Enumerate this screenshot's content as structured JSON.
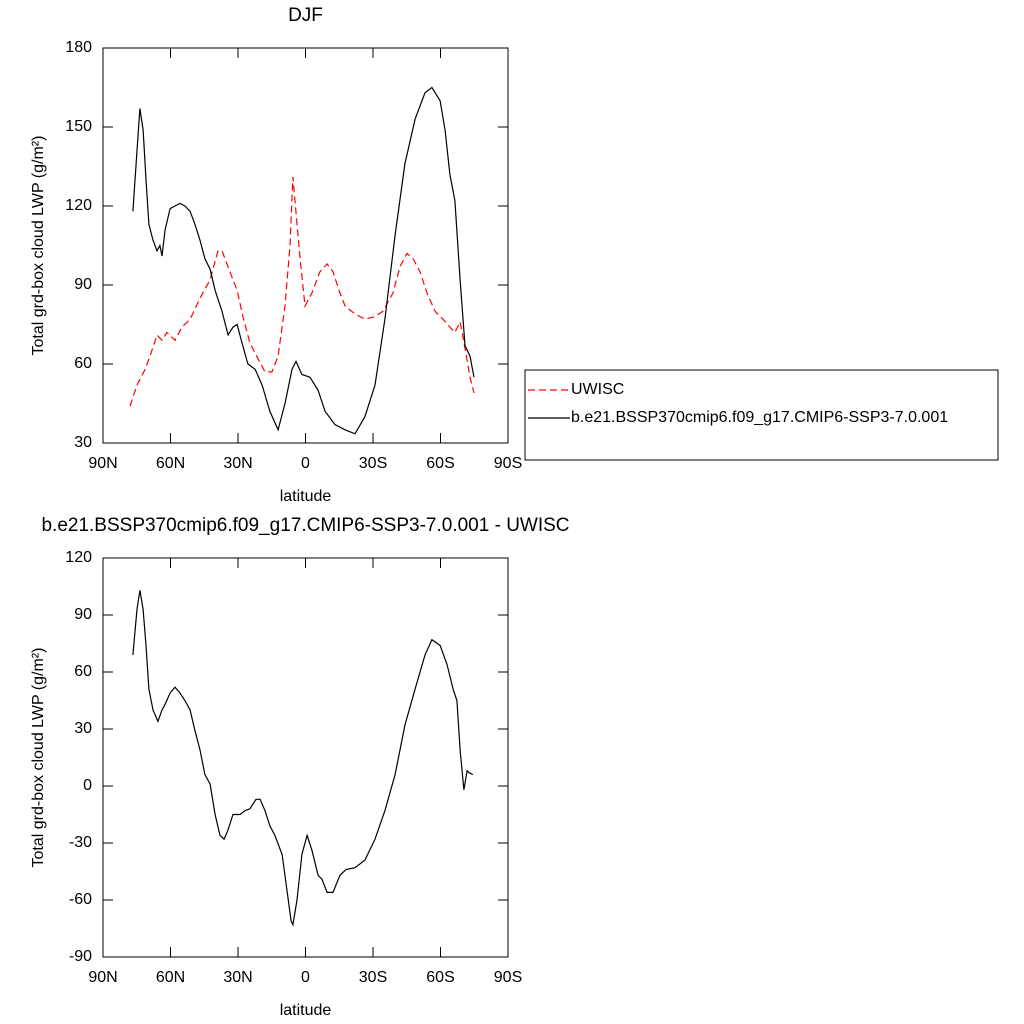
{
  "chart_data": [
    {
      "type": "line",
      "title": "DJF",
      "xlabel": "latitude",
      "ylabel": "Total grd-box cloud LWP (g/m²)",
      "xlim": [
        90,
        -90
      ],
      "xticks": [
        {
          "value": 90,
          "label": "90N"
        },
        {
          "value": 60,
          "label": "60N"
        },
        {
          "value": 30,
          "label": "30N"
        },
        0,
        {
          "value": -30,
          "label": "30S"
        },
        {
          "value": -60,
          "label": "60S"
        },
        {
          "value": -90,
          "label": "90S"
        }
      ],
      "ylim": [
        30,
        180
      ],
      "yticks": [
        30,
        60,
        90,
        120,
        150,
        180
      ],
      "legend": "right",
      "series": [
        {
          "name": "UWISC",
          "color": "#ff0000",
          "line_style": "dashed",
          "x": [
            78.0,
            74.9,
            71.3,
            69.1,
            66.0,
            63.8,
            61.6,
            58.0,
            54.9,
            51.3,
            46.9,
            42.4,
            38.9,
            37.1,
            33.6,
            30.4,
            27.8,
            24.7,
            21.1,
            18.0,
            14.9,
            12.2,
            9.1,
            6.9,
            5.6,
            2.4,
            0.2,
            -2.9,
            -6.4,
            -9.6,
            -12.2,
            -15.3,
            -17.6,
            -22.0,
            -26.4,
            -30.9,
            -34.4,
            -38.9,
            -42.0,
            -45.1,
            -47.8,
            -50.9,
            -54.0,
            -57.6,
            -61.1,
            -64.2,
            -66.4,
            -68.7,
            -70.9,
            -73.1,
            -74.9
          ],
          "values": [
            44,
            52,
            58,
            63,
            71,
            69,
            72,
            69,
            74,
            77,
            85,
            92,
            103,
            103,
            95,
            88,
            78,
            68,
            62,
            57,
            57,
            63,
            82,
            105,
            131,
            100,
            82,
            87,
            95,
            98,
            95,
            87,
            82,
            79,
            77,
            78,
            80,
            87,
            97,
            102,
            100,
            95,
            87,
            80,
            77,
            74,
            72,
            76,
            66,
            55,
            49
          ]
        },
        {
          "name": "b.e21.BSSP370cmip6.f09_g17.CMIP6-SSP3-7.0.001",
          "color": "#000000",
          "line_style": "solid",
          "x": [
            76.7,
            74.9,
            73.6,
            72.2,
            70.9,
            69.6,
            67.8,
            66.0,
            64.7,
            63.8,
            62.4,
            60.2,
            58.0,
            55.8,
            53.6,
            51.3,
            49.1,
            46.9,
            44.7,
            42.4,
            40.2,
            37.1,
            34.4,
            32.2,
            30.4,
            28.2,
            25.6,
            22.4,
            19.3,
            15.8,
            12.2,
            9.1,
            6.0,
            4.2,
            1.6,
            -2.0,
            -5.6,
            -8.7,
            -13.1,
            -17.6,
            -22.0,
            -26.4,
            -30.9,
            -35.3,
            -39.8,
            -44.2,
            -48.7,
            -53.1,
            -56.2,
            -59.8,
            -62.0,
            -64.2,
            -66.4,
            -68.7,
            -70.9,
            -73.1,
            -74.9
          ],
          "values": [
            118,
            141,
            157,
            149,
            130,
            113,
            107,
            103,
            105,
            101,
            111,
            119,
            120,
            121,
            120,
            118,
            113,
            107,
            100,
            96,
            88,
            80,
            71,
            74,
            75,
            68,
            60,
            58,
            52,
            42,
            35,
            45,
            58,
            61,
            56,
            55,
            50,
            42,
            37,
            35,
            33.5,
            40,
            52,
            77,
            109,
            136,
            153,
            163,
            165,
            160,
            149,
            132,
            122,
            92,
            67,
            63,
            55
          ]
        }
      ]
    },
    {
      "type": "line",
      "title": "b.e21.BSSP370cmip6.f09_g17.CMIP6-SSP3-7.0.001 - UWISC",
      "xlabel": "latitude",
      "ylabel": "Total grd-box cloud LWP (g/m²)",
      "xlim": [
        90,
        -90
      ],
      "xticks": [
        {
          "value": 90,
          "label": "90N"
        },
        {
          "value": 60,
          "label": "60N"
        },
        {
          "value": 30,
          "label": "30N"
        },
        0,
        {
          "value": -30,
          "label": "30S"
        },
        {
          "value": -60,
          "label": "60S"
        },
        {
          "value": -90,
          "label": "90S"
        }
      ],
      "ylim": [
        -90,
        120
      ],
      "yticks": [
        -90,
        -60,
        -30,
        0,
        30,
        60,
        90,
        120
      ],
      "series": [
        {
          "color": "#000000",
          "line_style": "solid",
          "x": [
            76.7,
            74.9,
            73.6,
            72.2,
            70.9,
            69.6,
            67.8,
            65.6,
            63.8,
            62.4,
            60.2,
            58.0,
            55.8,
            53.6,
            51.3,
            49.1,
            46.9,
            44.7,
            42.4,
            40.2,
            38.0,
            36.2,
            34.4,
            32.2,
            29.1,
            26.9,
            24.7,
            22.0,
            20.2,
            18.0,
            15.8,
            13.6,
            10.4,
            8.2,
            6.4,
            5.6,
            3.8,
            1.6,
            -0.7,
            -2.9,
            -5.6,
            -7.3,
            -9.6,
            -12.2,
            -15.3,
            -18.0,
            -22.0,
            -26.4,
            -30.9,
            -35.3,
            -39.8,
            -44.2,
            -48.7,
            -53.1,
            -56.2,
            -59.8,
            -62.9,
            -65.6,
            -67.3,
            -68.7,
            -70.4,
            -71.8,
            -72.7,
            -74.4
          ],
          "values": [
            69,
            93,
            103,
            93,
            74,
            51,
            40,
            34,
            40,
            43,
            49,
            52,
            49,
            45,
            40,
            29,
            19,
            6,
            1,
            -15,
            -26,
            -28,
            -23,
            -15,
            -15,
            -13,
            -12,
            -7,
            -7,
            -13,
            -21,
            -26,
            -36,
            -55,
            -71,
            -73,
            -60,
            -36,
            -26,
            -34,
            -47,
            -49,
            -56,
            -56,
            -47,
            -44,
            -43,
            -39,
            -28,
            -13,
            6,
            32,
            51,
            69,
            77,
            74,
            64,
            51,
            45,
            19,
            -2,
            8,
            7,
            6
          ]
        }
      ]
    }
  ]
}
